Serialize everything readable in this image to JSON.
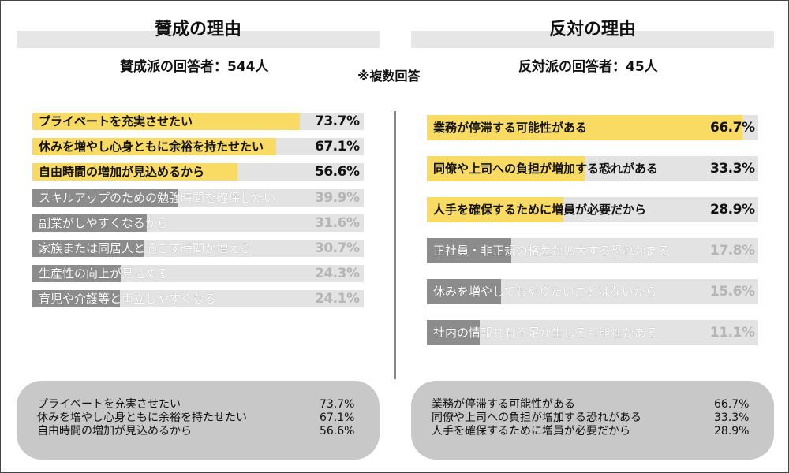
{
  "header": {
    "for_title": "賛成の理由",
    "against_title": "反対の理由",
    "for_respondents": "賛成派の回答者：544人",
    "against_respondents": "反対派の回答者：45人",
    "note": "※複数回答"
  },
  "colors": {
    "highlight": "#f9da62",
    "highlight_text": "#111111",
    "gray_bar": "#8c8c8c",
    "gray_text": "#ffffff",
    "gray_value": "#b5b5b5"
  },
  "chart_data": [
    {
      "type": "bar",
      "orientation": "horizontal",
      "title": "賛成の理由",
      "categories": [
        "プライベートを充実させたい",
        "休みを増やし心身ともに余裕を持たせたい",
        "自由時間の増加が見込めるから",
        "スキルアップのための勉強時間を確保したい",
        "副業がしやすくなるから",
        "家族または同居人と過ごす時間が増える",
        "生産性の向上が見込める",
        "育児や介護等と両立しやすくなる"
      ],
      "values": [
        73.7,
        67.1,
        56.6,
        39.9,
        31.6,
        30.7,
        24.3,
        24.1
      ],
      "value_labels": [
        "73.7%",
        "67.1%",
        "56.6%",
        "39.9%",
        "31.6%",
        "30.7%",
        "24.3%",
        "24.1%"
      ],
      "highlighted": [
        true,
        true,
        true,
        false,
        false,
        false,
        false,
        false
      ],
      "xlim": [
        0,
        100
      ]
    },
    {
      "type": "bar",
      "orientation": "horizontal",
      "title": "反対の理由",
      "categories": [
        "業務が停滞する可能性がある",
        "同僚や上司への負担が増加する恐れがある",
        "人手を確保するために増員が必要だから",
        "正社員・非正規の格差が拡大する恐れがある",
        "休みを増やしてもやりたいことはないから",
        "社内の情報共有不足が生じる可能性がある"
      ],
      "values": [
        66.7,
        33.3,
        28.9,
        17.8,
        15.6,
        11.1
      ],
      "value_labels": [
        "66.7%",
        "33.3%",
        "28.9%",
        "17.8%",
        "15.6%",
        "11.1%"
      ],
      "highlighted": [
        true,
        true,
        true,
        false,
        false,
        false
      ],
      "xlim": [
        0,
        100
      ]
    }
  ],
  "summary": {
    "for": [
      {
        "label": "プライベートを充実させたい",
        "value": "73.7%"
      },
      {
        "label": "休みを増やし心身ともに余裕を持たせたい",
        "value": "67.1%"
      },
      {
        "label": "自由時間の増加が見込めるから",
        "value": "56.6%"
      }
    ],
    "against": [
      {
        "label": "業務が停滞する可能性がある",
        "value": "66.7%"
      },
      {
        "label": "同僚や上司への負担が増加する恐れがある",
        "value": "33.3%"
      },
      {
        "label": "人手を確保するために増員が必要だから",
        "value": "28.9%"
      }
    ]
  }
}
